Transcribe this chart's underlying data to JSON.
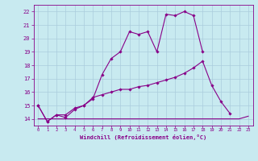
{
  "xlabel": "Windchill (Refroidissement éolien,°C)",
  "background_color": "#c8eaf0",
  "line_color": "#880088",
  "grid_color": "#aaccdd",
  "xlim": [
    -0.5,
    23.5
  ],
  "ylim": [
    13.5,
    22.5
  ],
  "xticks": [
    0,
    1,
    2,
    3,
    4,
    5,
    6,
    7,
    8,
    9,
    10,
    11,
    12,
    13,
    14,
    15,
    16,
    17,
    18,
    19,
    20,
    21,
    22,
    23
  ],
  "yticks": [
    14,
    15,
    16,
    17,
    18,
    19,
    20,
    21,
    22
  ],
  "line1_x": [
    0,
    1,
    2,
    3,
    4,
    5,
    6,
    7,
    8,
    9,
    10,
    11,
    12,
    13,
    14,
    15,
    16,
    17,
    18
  ],
  "line1_y": [
    15.0,
    13.8,
    14.3,
    14.1,
    14.7,
    15.0,
    15.5,
    17.3,
    18.5,
    19.0,
    20.5,
    20.3,
    20.5,
    19.0,
    21.8,
    21.7,
    22.0,
    21.7,
    19.0
  ],
  "line2_x": [
    0,
    1,
    2,
    3,
    4,
    5,
    6,
    7,
    8,
    9,
    10,
    11,
    12,
    13,
    14,
    15,
    16,
    17,
    18,
    19,
    20,
    21
  ],
  "line2_y": [
    15.0,
    13.8,
    14.3,
    14.3,
    14.8,
    15.0,
    15.6,
    15.8,
    16.0,
    16.2,
    16.2,
    16.4,
    16.5,
    16.7,
    16.9,
    17.1,
    17.4,
    17.8,
    18.3,
    16.5,
    15.3,
    14.4
  ],
  "line3_x": [
    0,
    1,
    2,
    3,
    4,
    5,
    6,
    7,
    8,
    9,
    10,
    11,
    12,
    13,
    14,
    15,
    16,
    17,
    18,
    19,
    20,
    21,
    22,
    23
  ],
  "line3_y": [
    14.0,
    14.0,
    14.0,
    14.0,
    14.0,
    14.0,
    14.0,
    14.0,
    14.0,
    14.0,
    14.0,
    14.0,
    14.0,
    14.0,
    14.0,
    14.0,
    14.0,
    14.0,
    14.0,
    14.0,
    14.0,
    14.0,
    14.0,
    14.2
  ]
}
